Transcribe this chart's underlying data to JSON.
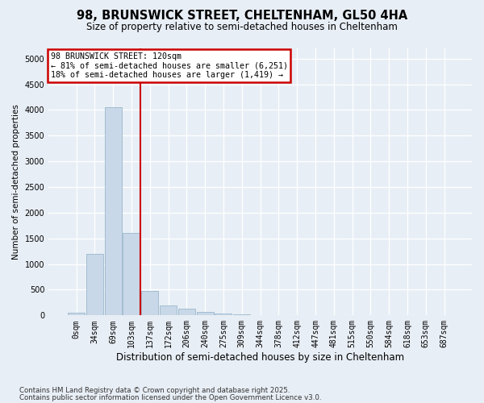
{
  "title_line1": "98, BRUNSWICK STREET, CHELTENHAM, GL50 4HA",
  "title_line2": "Size of property relative to semi-detached houses in Cheltenham",
  "xlabel": "Distribution of semi-detached houses by size in Cheltenham",
  "ylabel": "Number of semi-detached properties",
  "categories": [
    "0sqm",
    "34sqm",
    "69sqm",
    "103sqm",
    "137sqm",
    "172sqm",
    "206sqm",
    "240sqm",
    "275sqm",
    "309sqm",
    "344sqm",
    "378sqm",
    "412sqm",
    "447sqm",
    "481sqm",
    "515sqm",
    "550sqm",
    "584sqm",
    "618sqm",
    "653sqm",
    "687sqm"
  ],
  "values": [
    50,
    1200,
    4050,
    1600,
    475,
    200,
    130,
    65,
    30,
    20,
    5,
    0,
    0,
    0,
    0,
    0,
    0,
    0,
    0,
    0,
    0
  ],
  "bar_color": "#c8d8e8",
  "bar_edgecolor": "#9ab8cc",
  "vline_x_index": 3.5,
  "vline_color": "#cc0000",
  "ylim": [
    0,
    5200
  ],
  "yticks": [
    0,
    500,
    1000,
    1500,
    2000,
    2500,
    3000,
    3500,
    4000,
    4500,
    5000
  ],
  "annotation_title": "98 BRUNSWICK STREET: 120sqm",
  "annotation_line1": "← 81% of semi-detached houses are smaller (6,251)",
  "annotation_line2": "18% of semi-detached houses are larger (1,419) →",
  "annotation_box_color": "#cc0000",
  "footnote1": "Contains HM Land Registry data © Crown copyright and database right 2025.",
  "footnote2": "Contains public sector information licensed under the Open Government Licence v3.0.",
  "bg_color": "#e8eef5",
  "plot_bg_color": "#e8eef5",
  "grid_color": "#ffffff",
  "title_fontsize": 10.5,
  "subtitle_fontsize": 8.5,
  "xlabel_fontsize": 8.5,
  "ylabel_fontsize": 7.5,
  "tick_fontsize": 7,
  "annotation_fontsize": 7.2,
  "footnote_fontsize": 6.2
}
